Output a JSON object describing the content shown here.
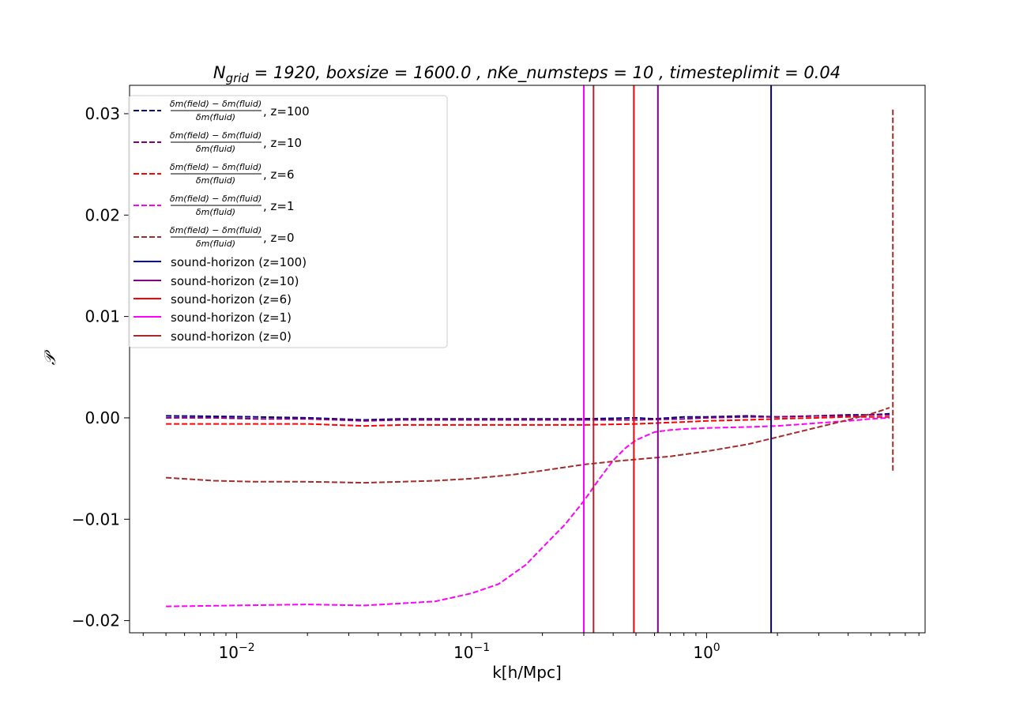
{
  "chart_data": {
    "type": "line",
    "title": "N_{grid} = 1920, boxsize = 1600.0 , nKe_numsteps = 10 , timesteplimit = 0.04",
    "title_parts": {
      "n": "N",
      "n_sub": "grid",
      "rest": " = 1920, boxsize = 1600.0 , nKe_numsteps = 10 , timesteplimit = 0.04"
    },
    "xlabel": "k[h/Mpc]",
    "ylabel": "𝒫",
    "x_scale": "log",
    "xlim": [
      0.0035,
      8.5
    ],
    "ylim": [
      -0.0212,
      0.0328
    ],
    "x_ticks": [
      {
        "value": 0.01,
        "base": "10",
        "exp": "−2"
      },
      {
        "value": 0.1,
        "base": "10",
        "exp": "−1"
      },
      {
        "value": 1,
        "base": "10",
        "exp": "0"
      }
    ],
    "y_ticks": [
      {
        "value": 0.03,
        "label": "0.03"
      },
      {
        "value": 0.02,
        "label": "0.02"
      },
      {
        "value": 0.01,
        "label": "0.01"
      },
      {
        "value": 0.0,
        "label": "0.00"
      },
      {
        "value": -0.01,
        "label": "−0.01"
      },
      {
        "value": -0.02,
        "label": "−0.02"
      }
    ],
    "grid": false,
    "legend_position": "upper-left",
    "fraction": {
      "numerator": "δm(field) − δm(fluid)",
      "denominator": "δm(fluid)"
    },
    "series": [
      {
        "name": ", z=100",
        "color": "#000080",
        "style": "dashed",
        "x": [
          0.005,
          0.008,
          0.012,
          0.02,
          0.035,
          0.05,
          0.1,
          0.2,
          0.3,
          0.5,
          0.6,
          0.8,
          1.0,
          1.5,
          2.0,
          3.0,
          4.0,
          5.0,
          6.0
        ],
        "y": [
          0.0002,
          0.00015,
          0.0001,
          0.0,
          -0.0002,
          -0.0001,
          -0.0001,
          -0.0001,
          -0.0001,
          0.0,
          -0.0001,
          0.0001,
          0.0001,
          0.0002,
          0.0001,
          0.0002,
          0.0003,
          0.0003,
          0.0004
        ]
      },
      {
        "name": ", z=10",
        "color": "#800080",
        "style": "dashed",
        "x": [
          0.005,
          0.008,
          0.012,
          0.02,
          0.035,
          0.05,
          0.1,
          0.2,
          0.3,
          0.5,
          0.8,
          1.0,
          1.5,
          2.0,
          3.0,
          4.0,
          5.0,
          6.0
        ],
        "y": [
          0.0,
          0.0,
          -0.0001,
          -0.0001,
          -0.0003,
          -0.0002,
          -0.0002,
          -0.0002,
          -0.0002,
          -0.0002,
          -0.0001,
          0.0,
          0.0001,
          0.0001,
          0.0002,
          0.0002,
          0.0003,
          0.0003
        ]
      },
      {
        "name": ", z=6",
        "color": "#ff0000",
        "style": "dashed",
        "x": [
          0.005,
          0.01,
          0.02,
          0.035,
          0.05,
          0.1,
          0.2,
          0.3,
          0.5,
          0.8,
          1.0,
          1.5,
          2.0,
          3.0,
          4.0,
          5.0,
          6.0
        ],
        "y": [
          -0.0006,
          -0.0006,
          -0.0006,
          -0.0008,
          -0.0007,
          -0.0007,
          -0.0007,
          -0.0007,
          -0.0006,
          -0.0004,
          -0.0003,
          -0.0002,
          -0.0001,
          0.0,
          0.0001,
          0.0001,
          0.0001
        ]
      },
      {
        "name": ", z=1",
        "color": "#ff00ff",
        "style": "dashed",
        "x": [
          0.005,
          0.01,
          0.02,
          0.035,
          0.05,
          0.07,
          0.1,
          0.13,
          0.17,
          0.2,
          0.25,
          0.3,
          0.35,
          0.4,
          0.45,
          0.5,
          0.6,
          0.7,
          0.8,
          1.0,
          1.5,
          2.0,
          3.0,
          4.0,
          5.0,
          6.0
        ],
        "y": [
          -0.0186,
          -0.0185,
          -0.0184,
          -0.0185,
          -0.0183,
          -0.0181,
          -0.0173,
          -0.0164,
          -0.0145,
          -0.0128,
          -0.0105,
          -0.0082,
          -0.006,
          -0.0042,
          -0.003,
          -0.0022,
          -0.0014,
          -0.0012,
          -0.0011,
          -0.001,
          -0.0009,
          -0.0008,
          -0.0005,
          -0.0003,
          -0.0001,
          0.0
        ]
      },
      {
        "name": ", z=0",
        "color": "#a52a2a",
        "style": "dashed",
        "x": [
          0.005,
          0.008,
          0.012,
          0.02,
          0.035,
          0.05,
          0.07,
          0.1,
          0.15,
          0.2,
          0.3,
          0.4,
          0.5,
          0.7,
          1.0,
          1.5,
          2.0,
          3.0,
          4.0,
          5.0,
          5.5,
          6.0
        ],
        "y": [
          -0.0059,
          -0.0062,
          -0.0063,
          -0.0063,
          -0.0064,
          -0.0063,
          -0.0062,
          -0.006,
          -0.0056,
          -0.0052,
          -0.0046,
          -0.0043,
          -0.0041,
          -0.0038,
          -0.0033,
          -0.0026,
          -0.0019,
          -0.0009,
          -0.0002,
          0.0004,
          0.0007,
          0.001
        ]
      },
      {
        "name": "sound-horizon (z=100)",
        "color": "#000080",
        "style": "solid",
        "vline_x": 1.88
      },
      {
        "name": "sound-horizon (z=10)",
        "color": "#800080",
        "style": "solid",
        "vline_x": 0.62
      },
      {
        "name": "sound-horizon (z=6)",
        "color": "#ff0000",
        "style": "solid",
        "vline_x": 0.49
      },
      {
        "name": "sound-horizon (z=1)",
        "color": "#ff00ff",
        "style": "solid",
        "vline_x": 0.3
      },
      {
        "name": "sound-horizon (z=0)",
        "color": "#a52a2a",
        "style": "solid",
        "vline_x": 0.33
      }
    ],
    "endpoint_feature": {
      "x": 6.2,
      "y_max": 0.0304,
      "y_min": -0.0054,
      "color": "#a52a2a"
    }
  }
}
